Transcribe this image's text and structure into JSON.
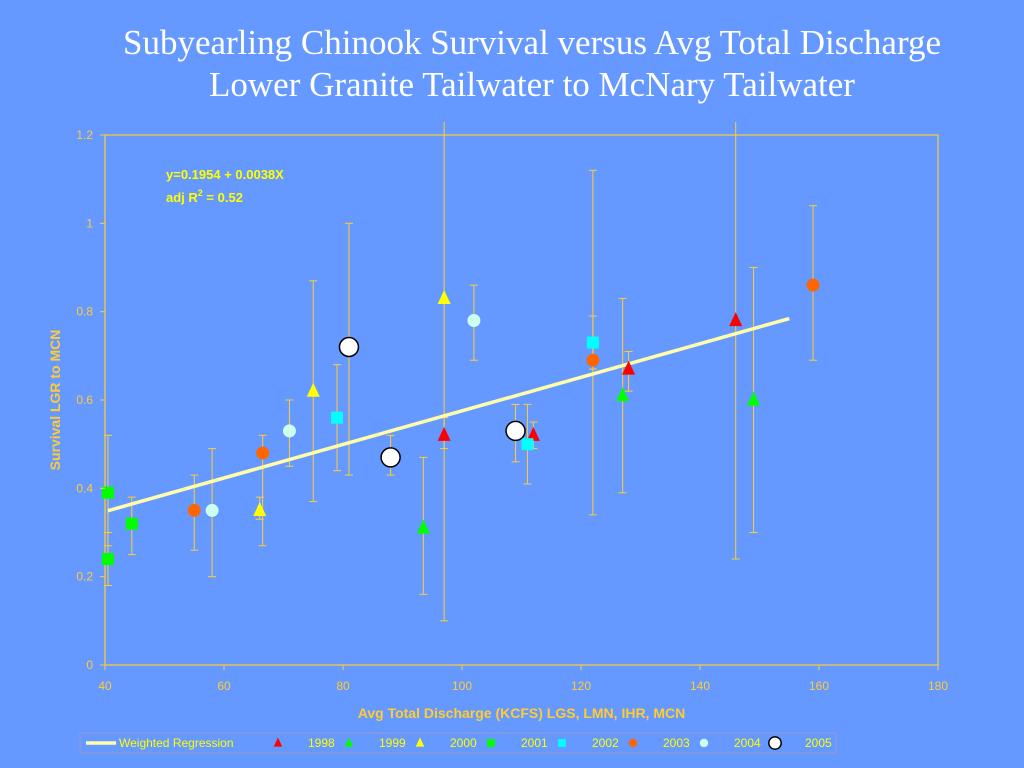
{
  "title": {
    "line1": "Subyearling Chinook Survival versus Avg Total Discharge",
    "line2": "Lower Granite Tailwater to McNary Tailwater"
  },
  "colors": {
    "background": "#6699ff",
    "axis": "#ffcc33",
    "regression": "#ffffaa",
    "legend_text": "#ffff00"
  },
  "chart_data": {
    "type": "scatter",
    "xlabel": "Avg Total Discharge (KCFS) LGS, LMN, IHR, MCN",
    "ylabel": "Survival LGR to MCN",
    "xlim": [
      40,
      180
    ],
    "ylim": [
      0,
      1.2
    ],
    "xticks": [
      40,
      60,
      80,
      100,
      120,
      140,
      160,
      180
    ],
    "yticks": [
      0,
      0.2,
      0.4,
      0.6,
      0.8,
      1,
      1.2
    ],
    "xtick_labels": [
      "40",
      "60",
      "80",
      "100",
      "120",
      "140",
      "160",
      "180"
    ],
    "ytick_labels": [
      "0",
      "0.2",
      "0.4",
      "0.6",
      "0.8",
      "1",
      "1.2"
    ],
    "grid": false,
    "legend_position": "bottom",
    "annotation": {
      "equation": "y=0.1954 + 0.0038X",
      "r2_prefix": "adj R",
      "r2_sup": "2",
      "r2_suffix": " = 0.52"
    },
    "regression": {
      "name": "Weighted Regression",
      "intercept": 0.1954,
      "slope": 0.0038,
      "x_range": [
        40.5,
        155
      ],
      "color": "#ffffaa"
    },
    "series": [
      {
        "name": "1998",
        "marker": "triangle",
        "color": "#ff0000",
        "points": [
          {
            "x": 97,
            "y": 0.52,
            "lo": 0.49,
            "hi": 0.56
          },
          {
            "x": 112,
            "y": 0.52,
            "lo": 0.49,
            "hi": 0.55
          },
          {
            "x": 128,
            "y": 0.67,
            "lo": 0.62,
            "hi": 0.71
          },
          {
            "x": 146,
            "y": 0.78,
            "lo": 0.24,
            "hi": 1.23
          }
        ]
      },
      {
        "name": "1999",
        "marker": "triangle",
        "color": "#00ff00",
        "points": [
          {
            "x": 93.5,
            "y": 0.31,
            "lo": 0.16,
            "hi": 0.47
          },
          {
            "x": 127,
            "y": 0.61,
            "lo": 0.39,
            "hi": 0.83
          },
          {
            "x": 149,
            "y": 0.6,
            "lo": 0.3,
            "hi": 0.9
          }
        ]
      },
      {
        "name": "2000",
        "marker": "triangle",
        "color": "#ffff00",
        "points": [
          {
            "x": 66,
            "y": 0.35,
            "lo": 0.33,
            "hi": 0.38
          },
          {
            "x": 75,
            "y": 0.62,
            "lo": 0.37,
            "hi": 0.87
          },
          {
            "x": 97,
            "y": 0.83,
            "lo": 0.1,
            "hi": 1.23
          }
        ]
      },
      {
        "name": "2001",
        "marker": "square",
        "color": "#00ff00",
        "points": [
          {
            "x": 40.5,
            "y": 0.39,
            "lo": 0.27,
            "hi": 0.52
          },
          {
            "x": 40.5,
            "y": 0.24,
            "lo": 0.18,
            "hi": 0.3
          },
          {
            "x": 44.5,
            "y": 0.32,
            "lo": 0.25,
            "hi": 0.38
          }
        ]
      },
      {
        "name": "2002",
        "marker": "square",
        "color": "#00ffff",
        "points": [
          {
            "x": 79,
            "y": 0.56,
            "lo": 0.44,
            "hi": 0.68
          },
          {
            "x": 111,
            "y": 0.5,
            "lo": 0.41,
            "hi": 0.59
          },
          {
            "x": 122,
            "y": 0.73,
            "lo": 0.67,
            "hi": 0.79
          }
        ]
      },
      {
        "name": "2003",
        "marker": "circle",
        "color": "#ff6600",
        "points": [
          {
            "x": 55,
            "y": 0.35,
            "lo": 0.26,
            "hi": 0.43
          },
          {
            "x": 66.5,
            "y": 0.48,
            "lo": 0.27,
            "hi": 0.52
          },
          {
            "x": 122,
            "y": 0.69,
            "lo": 0.34,
            "hi": 1.12
          },
          {
            "x": 159,
            "y": 0.86,
            "lo": 0.69,
            "hi": 1.04
          }
        ]
      },
      {
        "name": "2004",
        "marker": "circle",
        "color": "#ccffee",
        "points": [
          {
            "x": 58,
            "y": 0.35,
            "lo": 0.2,
            "hi": 0.49
          },
          {
            "x": 71,
            "y": 0.53,
            "lo": 0.45,
            "hi": 0.6
          },
          {
            "x": 102,
            "y": 0.78,
            "lo": 0.69,
            "hi": 0.86
          }
        ]
      },
      {
        "name": "2005",
        "marker": "circle-open",
        "color": "#ffffff",
        "points": [
          {
            "x": 81,
            "y": 0.72,
            "lo": 0.43,
            "hi": 1.0
          },
          {
            "x": 88,
            "y": 0.47,
            "lo": 0.43,
            "hi": 0.52
          },
          {
            "x": 109,
            "y": 0.53,
            "lo": 0.46,
            "hi": 0.59
          }
        ]
      }
    ]
  }
}
